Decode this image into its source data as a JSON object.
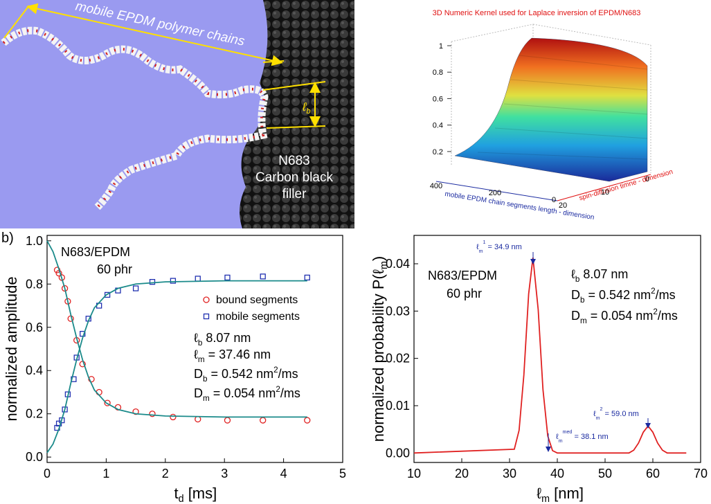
{
  "panel_label": "b)",
  "illustration": {
    "chain_label": "mobile EPDM polymer chains",
    "length_symbol": "ℓ",
    "length_sub": "b",
    "filler_label": [
      "N683",
      "Carbon black",
      "filler"
    ]
  },
  "kernel_plot": {
    "title": "3D Numeric Kernel used for Laplace inversion of EPDM/N683",
    "zlim": [
      0.1,
      1
    ],
    "zticks": [
      0.2,
      0.4,
      0.6,
      0.8,
      1
    ],
    "xlim": [
      400,
      0
    ],
    "xticks": [
      400,
      200,
      0
    ],
    "xlabel": "mobile EPDM chain segments length - dimension",
    "ylim": [
      20,
      0
    ],
    "yticks": [
      20,
      10,
      0
    ],
    "ylabel": "spin-diffusion timne - dimension"
  },
  "chart_data": [
    {
      "type": "scatter",
      "xlabel": [
        {
          "text": "t"
        },
        {
          "sub": "d"
        },
        {
          "text": " [ms]"
        }
      ],
      "ylabel": [
        {
          "text": "normalized amplitude"
        }
      ],
      "xlim": [
        0,
        5
      ],
      "xticks": [
        0,
        1,
        2,
        3,
        4,
        5
      ],
      "ylim": [
        -0.025,
        1.025
      ],
      "yticks": [
        {
          "value": 0,
          "label": "0.0"
        },
        0.2,
        0.4,
        0.6,
        0.8,
        {
          "value": 1,
          "label": "1.0"
        }
      ],
      "series": [
        {
          "name": "bound segments",
          "color": "#e02020",
          "marker": "circle",
          "x": [
            0.17,
            0.2,
            0.25,
            0.3,
            0.35,
            0.4,
            0.5,
            0.6,
            0.75,
            0.88,
            1.02,
            1.2,
            1.5,
            1.78,
            2.13,
            2.55,
            3.05,
            3.65,
            4.4
          ],
          "values": [
            0.865,
            0.85,
            0.83,
            0.78,
            0.72,
            0.64,
            0.54,
            0.43,
            0.36,
            0.3,
            0.25,
            0.23,
            0.21,
            0.2,
            0.185,
            0.175,
            0.17,
            0.17,
            0.17
          ]
        },
        {
          "name": "mobile segments",
          "color": "#2030b0",
          "marker": "square",
          "x": [
            0.17,
            0.2,
            0.25,
            0.3,
            0.35,
            0.45,
            0.5,
            0.6,
            0.7,
            0.88,
            1.02,
            1.2,
            1.5,
            1.78,
            2.13,
            2.55,
            3.05,
            3.65,
            4.4
          ],
          "values": [
            0.135,
            0.155,
            0.17,
            0.22,
            0.29,
            0.36,
            0.46,
            0.57,
            0.64,
            0.7,
            0.75,
            0.77,
            0.78,
            0.81,
            0.815,
            0.825,
            0.83,
            0.835,
            0.83
          ]
        },
        {
          "marker": "line",
          "color": "#1a8a8a",
          "x": [
            0,
            0.1,
            0.2,
            0.3,
            0.4,
            0.5,
            0.6,
            0.7,
            0.8,
            1,
            1.2,
            1.5,
            2,
            3,
            4,
            4.4
          ],
          "values": [
            1.0,
            0.95,
            0.87,
            0.78,
            0.66,
            0.55,
            0.45,
            0.37,
            0.31,
            0.25,
            0.22,
            0.2,
            0.19,
            0.185,
            0.185,
            0.185
          ]
        },
        {
          "marker": "line",
          "color": "#1a8a8a",
          "x": [
            0,
            0.1,
            0.2,
            0.3,
            0.4,
            0.5,
            0.6,
            0.7,
            0.8,
            1,
            1.2,
            1.5,
            2,
            3,
            4,
            4.4
          ],
          "values": [
            0.02,
            0.06,
            0.13,
            0.22,
            0.34,
            0.45,
            0.55,
            0.63,
            0.69,
            0.75,
            0.78,
            0.8,
            0.81,
            0.815,
            0.815,
            0.815
          ]
        }
      ],
      "annotations": [
        [
          {
            "text": "N683/EPDM"
          }
        ],
        [
          {
            "text": "60 phr"
          }
        ],
        [
          {
            "text": "ℓ"
          },
          {
            "sub": "b"
          },
          {
            "text": "    8.07 nm"
          }
        ],
        [
          {
            "text": "ℓ"
          },
          {
            "sub": "m"
          },
          {
            "text": " = 37.46 nm"
          }
        ],
        [
          {
            "text": "D"
          },
          {
            "sub": "b"
          },
          {
            "text": " = 0.542 nm"
          },
          {
            "sup": "2"
          },
          {
            "text": "/ms"
          }
        ],
        [
          {
            "text": "D"
          },
          {
            "sub": "m"
          },
          {
            "text": " = 0.054 nm"
          },
          {
            "sup": "2"
          },
          {
            "text": "/ms"
          }
        ]
      ]
    },
    {
      "type": "line",
      "xlabel": [
        {
          "text": "ℓ"
        },
        {
          "sub": "m"
        },
        {
          "text": " [nm]"
        }
      ],
      "ylabel": [
        {
          "text": "normalized probability P(ℓ"
        },
        {
          "sub": "m"
        },
        {
          "text": ")"
        }
      ],
      "xlim": [
        10,
        70
      ],
      "xticks": [
        10,
        20,
        30,
        40,
        50,
        60,
        70
      ],
      "ylim": [
        -0.002,
        0.046
      ],
      "yticks": [
        {
          "value": 0,
          "label": "0.00"
        },
        0.01,
        0.02,
        0.03,
        0.04
      ],
      "series": [
        {
          "marker": "line",
          "color": "#e02020",
          "x": [
            10,
            31,
            32,
            33,
            34,
            34.9,
            36,
            37,
            38,
            39,
            40,
            55,
            56,
            57,
            58,
            59,
            60,
            61,
            62,
            63,
            67
          ],
          "values": [
            0,
            0.0008,
            0.0048,
            0.0165,
            0.0336,
            0.0413,
            0.0303,
            0.0134,
            0.0036,
            0.0005,
            0,
            0,
            0.0006,
            0.0021,
            0.0044,
            0.0057,
            0.0044,
            0.0021,
            0.0006,
            0,
            0
          ]
        }
      ],
      "annotations": [
        [
          {
            "text": "N683/EPDM"
          }
        ],
        [
          {
            "text": "60 phr"
          }
        ],
        [
          {
            "text": "ℓ"
          },
          {
            "sub": "b"
          },
          {
            "text": "    8.07 nm"
          }
        ],
        [
          {
            "text": "D"
          },
          {
            "sub": "b"
          },
          {
            "text": " = 0.542 nm"
          },
          {
            "sup": "2"
          },
          {
            "text": "/ms"
          }
        ],
        [
          {
            "text": "D"
          },
          {
            "sub": "m"
          },
          {
            "text": " = 0.054 nm"
          },
          {
            "sup": "2"
          },
          {
            "text": "/ms"
          }
        ],
        [
          {
            "text": "ℓ"
          },
          {
            "sub": "m"
          },
          {
            "sup": "1"
          },
          {
            "text": " = 34.9 nm"
          }
        ],
        [
          {
            "text": "ℓ"
          },
          {
            "sub": "m"
          },
          {
            "sup": "2"
          },
          {
            "text": " = 59.0 nm"
          }
        ],
        [
          {
            "text": "ℓ"
          },
          {
            "sub": "m"
          },
          {
            "sup": "med"
          },
          {
            "text": " = 38.1 nm"
          }
        ]
      ]
    }
  ]
}
